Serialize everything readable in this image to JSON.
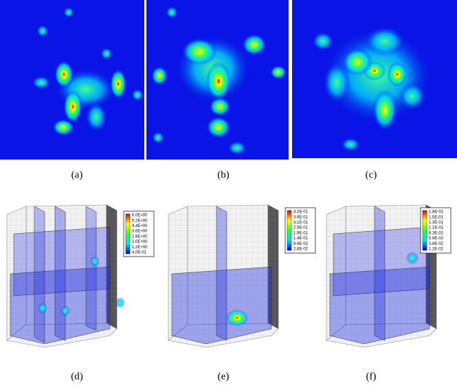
{
  "panels": [
    {
      "label": "(a)"
    },
    {
      "label": "(b)"
    },
    {
      "label": "(c)"
    },
    {
      "label": "(d)",
      "colorbar": [
        "6.0E+00",
        "5.2E+00",
        "4.4E+00",
        "3.6E+00",
        "2.8E+00",
        "2.0E+00",
        "1.2E+00",
        "4.0E-01"
      ]
    },
    {
      "label": "(e)",
      "colorbar": [
        "4.2E-01",
        "3.6E-01",
        "3.1E-01",
        "2.5E-01",
        "1.9E-01",
        "1.4E-01",
        "8.4E-02",
        "2.8E-02"
      ]
    },
    {
      "label": "(f)",
      "colorbar": [
        "1.8E-01",
        "1.5E-01",
        "1.3E-01",
        "1.1E-01",
        "8.3E-02",
        "5.9E-02",
        "3.6E-02",
        "1.2E-02"
      ]
    }
  ]
}
